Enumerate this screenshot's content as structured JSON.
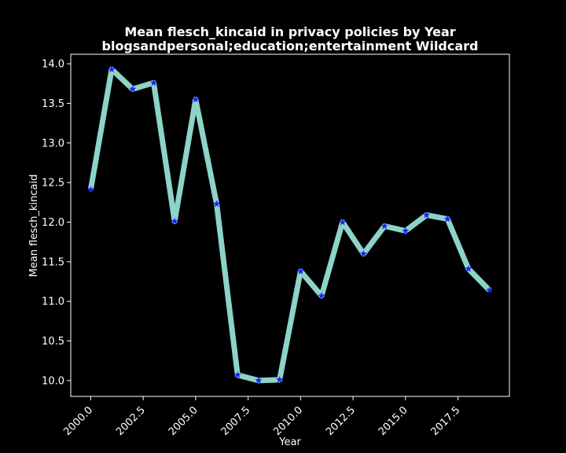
{
  "chart_data": {
    "type": "line",
    "title": "Mean flesch_kincaid in privacy policies by Year",
    "subtitle": "blogsandpersonal;education;entertainment Wildcard",
    "xlabel": "Year",
    "ylabel": "Mean flesch_kincaid",
    "xlim": [
      1999.05,
      2019.95
    ],
    "ylim": [
      9.8,
      14.12
    ],
    "x_ticks": [
      2000.0,
      2002.5,
      2005.0,
      2007.5,
      2010.0,
      2012.5,
      2015.0,
      2017.5
    ],
    "x_tick_labels": [
      "2000.0",
      "2002.5",
      "2005.0",
      "2007.5",
      "2010.0",
      "2012.5",
      "2015.0",
      "2017.5"
    ],
    "y_ticks": [
      10.0,
      10.5,
      11.0,
      11.5,
      12.0,
      12.5,
      13.0,
      13.5,
      14.0
    ],
    "y_tick_labels": [
      "10.0",
      "10.5",
      "11.0",
      "11.5",
      "12.0",
      "12.5",
      "13.0",
      "13.5",
      "14.0"
    ],
    "grid": false,
    "series": [
      {
        "color": "#8dd3c7",
        "marker_color": "#1f1fff",
        "marker": "star",
        "x": [
          2000,
          2001,
          2002,
          2003,
          2004,
          2005,
          2006,
          2007,
          2008,
          2009,
          2010,
          2011,
          2012,
          2013,
          2014,
          2015,
          2016,
          2017,
          2018,
          2019
        ],
        "values": [
          12.41,
          13.93,
          13.68,
          13.76,
          12.01,
          13.55,
          12.23,
          10.07,
          10.0,
          10.01,
          11.38,
          11.07,
          12.0,
          11.6,
          11.95,
          11.89,
          12.09,
          12.04,
          11.41,
          11.14
        ]
      }
    ]
  }
}
